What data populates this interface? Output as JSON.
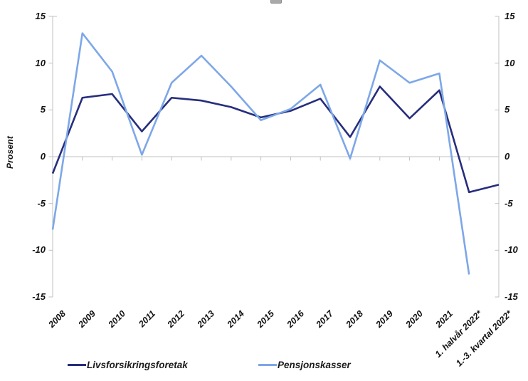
{
  "chart_data": {
    "type": "line",
    "title": "",
    "ylabel": "Prosent",
    "xlabel": "",
    "ylim": [
      -15,
      15
    ],
    "yticks": [
      15,
      10,
      5,
      0,
      -5,
      -10,
      -15
    ],
    "grid": "zero-line-only",
    "legend_position": "bottom",
    "axis_color": "#c0c0c0",
    "label_color": "#111111",
    "categories": [
      "2008",
      "2009",
      "2010",
      "2011",
      "2012",
      "2013",
      "2014",
      "2015",
      "2016",
      "2017",
      "2018",
      "2019",
      "2020",
      "2021",
      "1. halvår 2022*",
      "1.-3. kvartal 2022*"
    ],
    "series": [
      {
        "name": "Livsforsikringsforetak",
        "color": "#262e7d",
        "values": [
          -1.8,
          6.3,
          6.7,
          2.7,
          6.3,
          6.0,
          5.3,
          4.2,
          4.9,
          6.2,
          2.1,
          7.5,
          4.1,
          7.1,
          -3.8,
          -3.0
        ]
      },
      {
        "name": "Pensjonskasser",
        "color": "#7da7e8",
        "values": [
          -7.8,
          13.2,
          9.1,
          0.2,
          7.9,
          10.8,
          7.5,
          3.9,
          5.1,
          7.7,
          -0.2,
          10.3,
          7.9,
          8.9,
          -12.6,
          null
        ]
      }
    ]
  }
}
